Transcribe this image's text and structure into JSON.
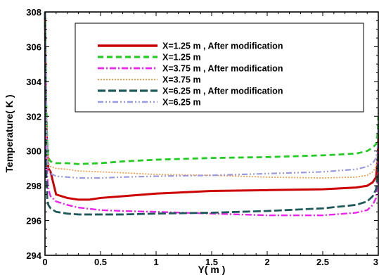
{
  "chart_data": {
    "type": "line",
    "xlabel": "Y( m )",
    "ylabel": "Temperature( K )",
    "xlim": [
      0,
      3
    ],
    "ylim": [
      294,
      308
    ],
    "xticks": [
      "0",
      "0.5",
      "1",
      "1.5",
      "2",
      "2.5",
      "3"
    ],
    "yticks": [
      "294",
      "296",
      "298",
      "300",
      "302",
      "304",
      "306",
      "308"
    ],
    "grid": false,
    "legend_position": "top-right",
    "series": [
      {
        "name": "X=1.25 m , After modification",
        "color": "#cc0000",
        "dash": "solid",
        "x": [
          0,
          0.005,
          0.01,
          0.02,
          0.03,
          0.05,
          0.1,
          0.2,
          0.3,
          0.4,
          0.5,
          0.7,
          1.0,
          1.5,
          2.0,
          2.5,
          2.8,
          2.9,
          2.95,
          2.98,
          2.995,
          3.0
        ],
        "y": [
          308,
          305,
          302,
          300,
          299,
          298.8,
          297.5,
          297.3,
          297.2,
          297.2,
          297.3,
          297.4,
          297.55,
          297.7,
          297.75,
          297.8,
          297.9,
          298,
          298.2,
          298.5,
          299.5,
          301
        ]
      },
      {
        "name": "X=1.25 m",
        "color": "#22cc22",
        "dash": "dash",
        "x": [
          0,
          0.005,
          0.01,
          0.02,
          0.03,
          0.05,
          0.1,
          0.2,
          0.3,
          0.5,
          0.7,
          1.0,
          1.5,
          2.0,
          2.5,
          2.8,
          2.9,
          2.95,
          2.98,
          2.995,
          3.0
        ],
        "y": [
          308,
          306,
          303,
          300.5,
          299.6,
          299.4,
          299.3,
          299.3,
          299.25,
          299.3,
          299.4,
          299.5,
          299.6,
          299.65,
          299.75,
          299.85,
          300,
          300.2,
          300.4,
          301,
          302
        ]
      },
      {
        "name": "X=3.75 m , After modification",
        "color": "#ee22ee",
        "dash": "dashdot",
        "x": [
          0,
          0.005,
          0.01,
          0.02,
          0.03,
          0.05,
          0.1,
          0.2,
          0.3,
          0.5,
          0.7,
          1.0,
          1.5,
          2.0,
          2.5,
          2.8,
          2.9,
          2.95,
          2.98,
          2.995,
          3.0
        ],
        "y": [
          308,
          305,
          301,
          298.5,
          297.8,
          297.4,
          297.1,
          296.9,
          296.75,
          296.6,
          296.55,
          296.5,
          296.4,
          296.3,
          296.3,
          296.45,
          296.6,
          296.9,
          297.3,
          298.5,
          300
        ]
      },
      {
        "name": "X=3.75 m",
        "color": "#f0a050",
        "dash": "dot",
        "x": [
          0,
          0.005,
          0.01,
          0.02,
          0.03,
          0.05,
          0.1,
          0.2,
          0.3,
          0.5,
          0.7,
          1.0,
          1.5,
          2.0,
          2.5,
          2.8,
          2.9,
          2.95,
          2.98,
          2.995,
          3.0
        ],
        "y": [
          308,
          305.5,
          302.5,
          300,
          299.3,
          299.1,
          299.0,
          298.95,
          298.85,
          298.8,
          298.75,
          298.65,
          298.6,
          298.5,
          298.45,
          298.5,
          298.6,
          298.8,
          299.1,
          299.8,
          301
        ]
      },
      {
        "name": "X=6.25 m , After modification",
        "color": "#1f5a5a",
        "dash": "longdash",
        "x": [
          0,
          0.005,
          0.01,
          0.02,
          0.03,
          0.05,
          0.1,
          0.2,
          0.3,
          0.5,
          0.7,
          1.0,
          1.5,
          2.0,
          2.5,
          2.8,
          2.9,
          2.95,
          2.98,
          2.995,
          3.0
        ],
        "y": [
          308,
          303,
          299,
          297.3,
          296.9,
          296.7,
          296.5,
          296.4,
          296.35,
          296.35,
          296.35,
          296.4,
          296.45,
          296.55,
          296.7,
          296.9,
          297.1,
          297.4,
          297.8,
          298.8,
          300
        ]
      },
      {
        "name": "X=6.25 m",
        "color": "#9a9ae0",
        "dash": "dashdotdot",
        "x": [
          0,
          0.005,
          0.01,
          0.02,
          0.03,
          0.05,
          0.1,
          0.2,
          0.3,
          0.5,
          0.7,
          1.0,
          1.5,
          2.0,
          2.5,
          2.8,
          2.9,
          2.95,
          2.98,
          2.995,
          3.0
        ],
        "y": [
          308,
          305,
          302,
          299.6,
          298.9,
          298.7,
          298.55,
          298.5,
          298.45,
          298.45,
          298.5,
          298.55,
          298.6,
          298.7,
          298.8,
          298.95,
          299.1,
          299.3,
          299.6,
          300.3,
          301.5
        ]
      }
    ]
  }
}
